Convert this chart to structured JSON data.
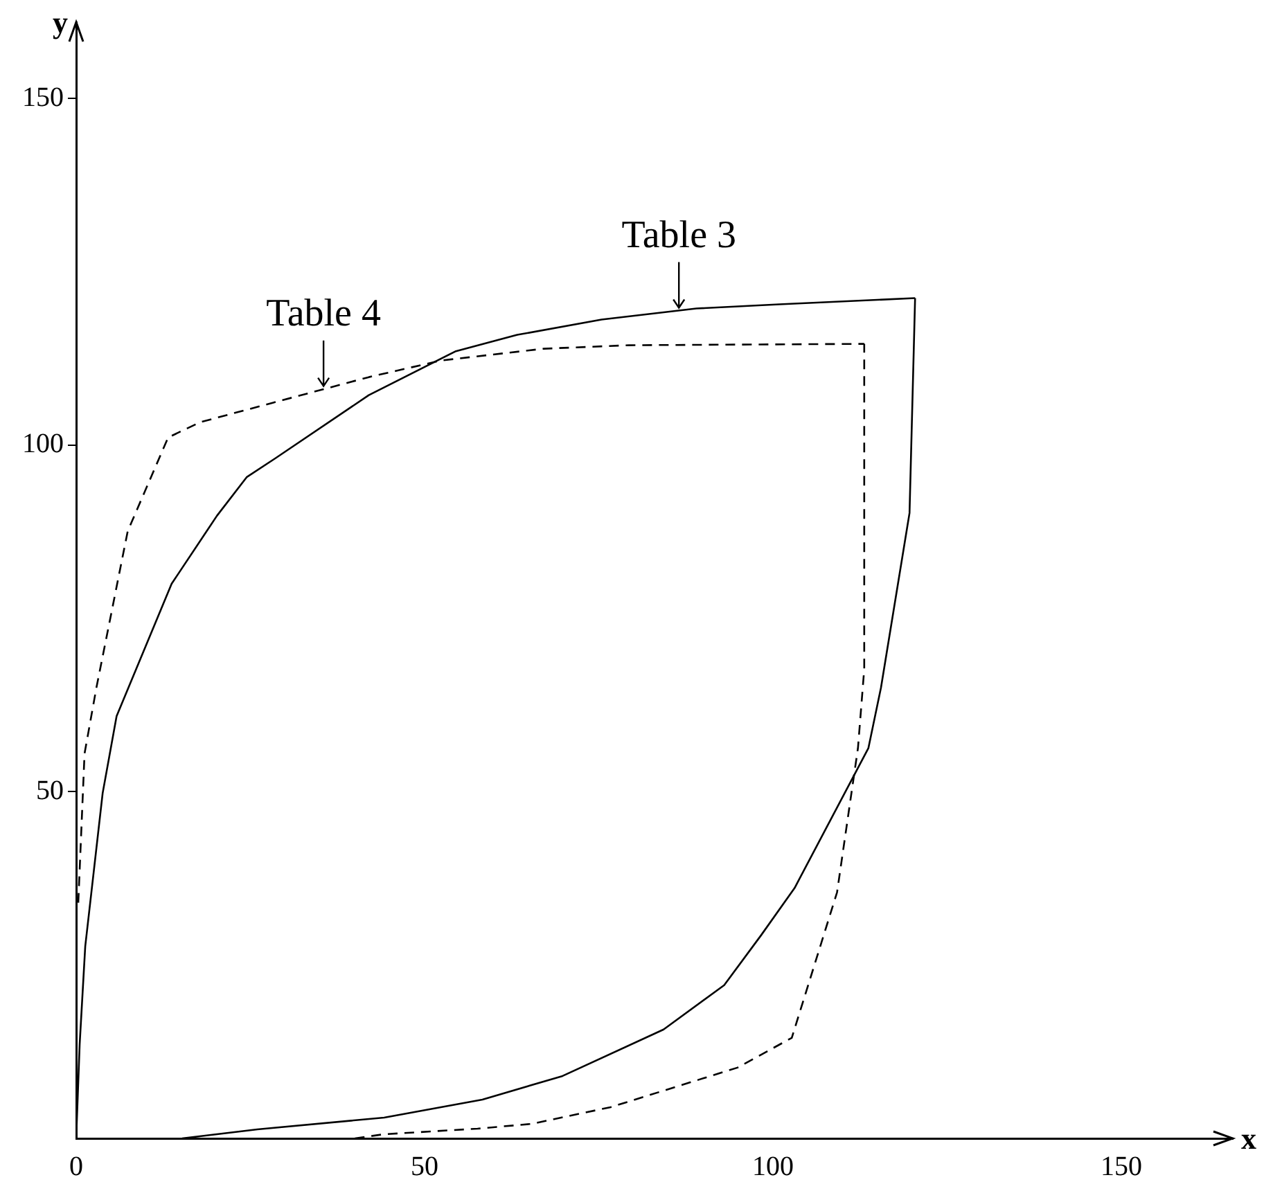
{
  "chart_data": {
    "type": "line",
    "xlabel": "x",
    "ylabel": "y",
    "xlim": [
      0,
      166
    ],
    "ylim": [
      0,
      161
    ],
    "xticks": [
      0,
      50,
      100,
      150
    ],
    "yticks": [
      50,
      100,
      150
    ],
    "marker": "none",
    "series": [
      {
        "color": "#000000",
        "line_style": "solid",
        "x": [
          0,
          0.5,
          1.3,
          3.8,
          5.8,
          13.7,
          20.2,
          24.5,
          28.6,
          42,
          54.4,
          63.3,
          75.4,
          89,
          100.9,
          120.4
        ],
        "values": [
          0,
          13.6,
          27.7,
          49.8,
          60.9,
          80,
          89.8,
          95.4,
          98.1,
          107.2,
          113.5,
          115.9,
          118.1,
          119.7,
          120.3,
          121.2
        ]
      },
      {
        "color": "#000000",
        "line_style": "solid",
        "x": [
          15.2,
          26,
          44.2,
          58.3,
          69.8,
          84.3,
          93,
          98.3,
          103.1,
          113.7,
          115.5,
          119.6,
          120.4
        ],
        "values": [
          0,
          1.3,
          3,
          5.6,
          9,
          15.7,
          22.1,
          29.3,
          36.1,
          56.3,
          65,
          90.2,
          121.2
        ]
      },
      {
        "color": "#000000",
        "line_style": "dashed",
        "x": [
          0.3,
          1.2,
          2.9,
          7.4,
          13.2,
          17.8,
          28.2,
          42,
          52.4,
          67.1,
          79.3,
          113.1
        ],
        "values": [
          34,
          55.5,
          65,
          87.6,
          101.1,
          103.3,
          106.1,
          109.8,
          112.2,
          113.9,
          114.4,
          114.6
        ]
      },
      {
        "color": "#000000",
        "line_style": "dashed",
        "x": [
          40,
          44.2,
          57.6,
          65.4,
          76.7,
          94.9,
          102.7,
          109.2,
          112.2,
          113.1,
          113.1
        ],
        "values": [
          0,
          0.6,
          1.4,
          2.1,
          4.5,
          10.2,
          14.5,
          35.5,
          56.3,
          67.7,
          114.6
        ]
      }
    ],
    "annotations": [
      {
        "text": "Table 3",
        "x": 86.5,
        "y": 119.4
      },
      {
        "text": "Table 4",
        "x": 35.5,
        "y": 108.1
      }
    ]
  }
}
